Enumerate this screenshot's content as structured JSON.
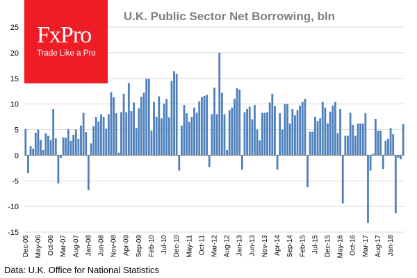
{
  "brand": {
    "logo_text": "FxPro",
    "tagline": "Trade Like a Pro",
    "color": "#ee1c25"
  },
  "source": "Data: U.K. Office for National Statistics",
  "chart_data": {
    "type": "bar",
    "title": "U.K. Public Sector Net Borrowing, bln",
    "title_color": "#7f7f7f",
    "bar_color": "#4f81bd",
    "grid": true,
    "ylim": [
      -15,
      25
    ],
    "yticks": [
      25,
      20,
      15,
      10,
      5,
      0,
      -5,
      -10,
      -15
    ],
    "xticks": [
      {
        "index": 0,
        "label": "Dec-05"
      },
      {
        "index": 5,
        "label": "May-06"
      },
      {
        "index": 10,
        "label": "Oct-06"
      },
      {
        "index": 15,
        "label": "Mar-07"
      },
      {
        "index": 20,
        "label": "Aug-07"
      },
      {
        "index": 25,
        "label": "Jan-08"
      },
      {
        "index": 30,
        "label": "Jun-08"
      },
      {
        "index": 35,
        "label": "Nov-08"
      },
      {
        "index": 40,
        "label": "Apr-09"
      },
      {
        "index": 45,
        "label": "Sep-09"
      },
      {
        "index": 50,
        "label": "Feb-10"
      },
      {
        "index": 55,
        "label": "Jul-10"
      },
      {
        "index": 60,
        "label": "Dec-10"
      },
      {
        "index": 65,
        "label": "May-11"
      },
      {
        "index": 70,
        "label": "Oct-11"
      },
      {
        "index": 75,
        "label": "Mar-12"
      },
      {
        "index": 80,
        "label": "Aug-12"
      },
      {
        "index": 85,
        "label": "Jan-13"
      },
      {
        "index": 90,
        "label": "Jun-13"
      },
      {
        "index": 95,
        "label": "Nov-13"
      },
      {
        "index": 100,
        "label": "Apr-14"
      },
      {
        "index": 105,
        "label": "Sep-14"
      },
      {
        "index": 110,
        "label": "Feb-15"
      },
      {
        "index": 115,
        "label": "Jul-15"
      },
      {
        "index": 120,
        "label": "Dec-15"
      },
      {
        "index": 125,
        "label": "May-16"
      },
      {
        "index": 130,
        "label": "Oct-16"
      },
      {
        "index": 135,
        "label": "Mar-17"
      },
      {
        "index": 140,
        "label": "Aug-17"
      },
      {
        "index": 145,
        "label": "Jan-18"
      }
    ],
    "values": [
      5.1,
      -3.5,
      1.8,
      1.3,
      4.4,
      5.0,
      3.0,
      1.0,
      4.3,
      3.8,
      3.0,
      9.0,
      3.3,
      -5.5,
      -0.5,
      3.5,
      3.4,
      5.1,
      2.8,
      4.0,
      5.0,
      3.2,
      5.8,
      8.3,
      4.5,
      -6.8,
      2.3,
      5.7,
      7.5,
      6.6,
      8.0,
      7.5,
      5.2,
      8.0,
      12.3,
      11.3,
      8.2,
      0.5,
      8.4,
      12.0,
      8.4,
      14.1,
      8.6,
      10.3,
      5.3,
      9.2,
      11.4,
      12.2,
      14.9,
      14.9,
      4.8,
      10.4,
      7.5,
      11.5,
      7.2,
      10.1,
      11.0,
      7.4,
      14.5,
      16.4,
      15.9,
      -3.0,
      5.8,
      9.8,
      8.2,
      6.5,
      7.5,
      9.3,
      8.3,
      10.5,
      11.3,
      11.6,
      11.8,
      -2.3,
      8.0,
      13.2,
      8.0,
      20.0,
      12.2,
      8.0,
      1.0,
      8.8,
      9.3,
      11.0,
      13.1,
      12.8,
      -2.8,
      8.4,
      9.0,
      9.5,
      7.0,
      9.8,
      5.0,
      2.9,
      8.3,
      8.3,
      8.4,
      10.3,
      12.0,
      9.6,
      -2.8,
      8.2,
      5.0,
      10.0,
      10.0,
      6.2,
      9.0,
      7.8,
      8.8,
      9.7,
      10.4,
      11.0,
      -6.2,
      4.6,
      4.6,
      7.5,
      6.7,
      7.2,
      10.4,
      9.3,
      6.2,
      8.5,
      9.7,
      10.4,
      4.3,
      9.0,
      -9.4,
      3.8,
      3.8,
      8.3,
      5.9,
      3.8,
      6.2,
      6.2,
      6.2,
      8.2,
      -13.2,
      -3.0,
      0.3,
      7.1,
      4.8,
      4.8,
      -2.7,
      2.8,
      3.2,
      5.3,
      4.1,
      -11.3,
      -0.5,
      -0.8,
      6.1
    ]
  }
}
